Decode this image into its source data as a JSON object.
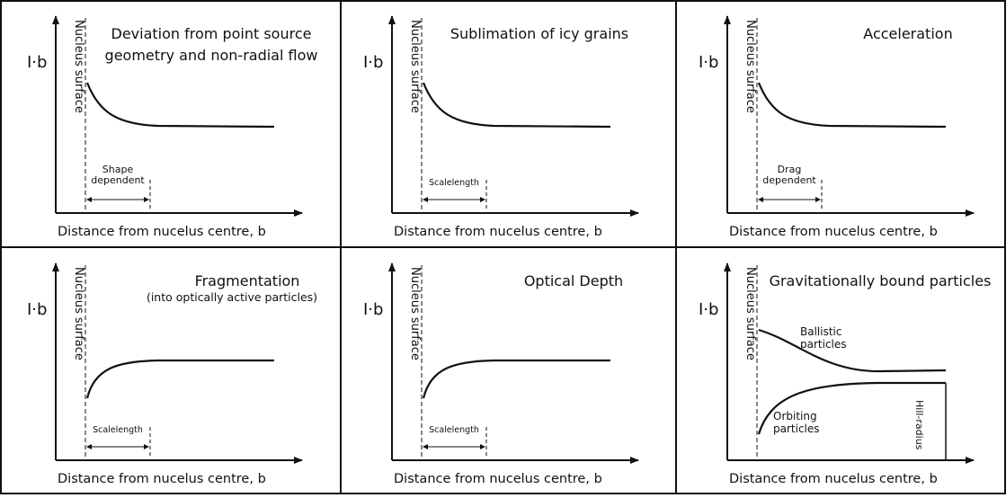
{
  "panels": [
    {
      "title": [
        "Deviation from point source",
        "geometry and non-radial flow"
      ],
      "y_label": "I·b",
      "x_label": "Distance from nucelus centre, b",
      "surface_label": "Nucleus surface",
      "scale_label": [
        "Shape",
        "dependent"
      ]
    },
    {
      "title": [
        "Sublimation of icy grains"
      ],
      "y_label": "I·b",
      "x_label": "Distance from nucelus centre, b",
      "surface_label": "Nucleus surface",
      "scale_label": [
        "Scalelength"
      ]
    },
    {
      "title": [
        "Acceleration"
      ],
      "y_label": "I·b",
      "x_label": "Distance from nucelus centre, b",
      "surface_label": "Nucleus surface",
      "scale_label": [
        "Drag",
        "dependent"
      ]
    },
    {
      "title": [
        "Fragmentation"
      ],
      "subtitle": "(into optically active particles)",
      "y_label": "I·b",
      "x_label": "Distance from nucelus centre, b",
      "surface_label": "Nucleus surface",
      "scale_label": [
        "Scalelength"
      ]
    },
    {
      "title": [
        "Optical Depth"
      ],
      "y_label": "I·b",
      "x_label": "Distance from nucelus centre, b",
      "surface_label": "Nucleus surface",
      "scale_label": [
        "Scalelength"
      ]
    },
    {
      "title": [
        "Gravitationally bound particles"
      ],
      "y_label": "I·b",
      "x_label": "Distance from nucelus centre, b",
      "surface_label": "Nucleus surface",
      "upper_label": [
        "Ballistic",
        "particles"
      ],
      "lower_label": [
        "Orbiting",
        "particles"
      ],
      "limit_label": "Hill-radius"
    }
  ]
}
